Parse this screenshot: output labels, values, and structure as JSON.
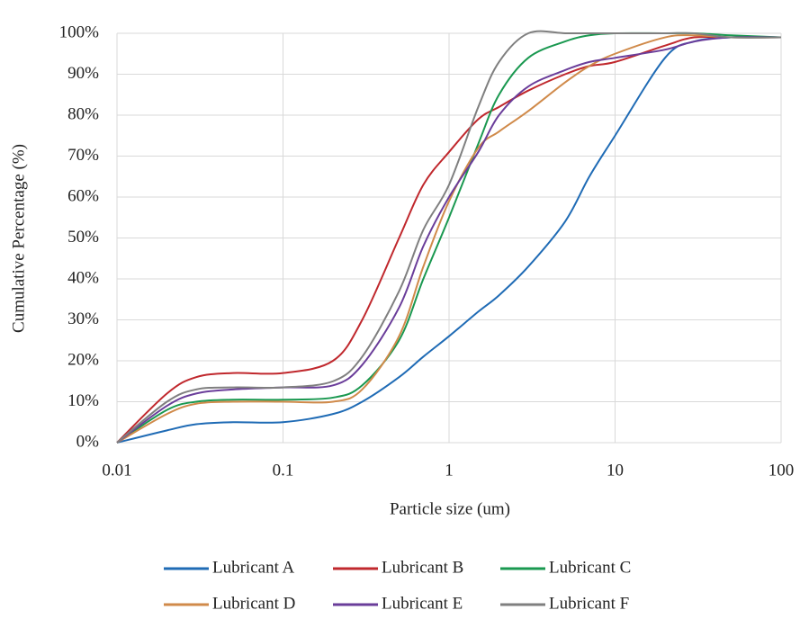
{
  "chart_data": {
    "type": "line",
    "x_label": "Particle size (um)",
    "y_label": "Cumulative Percentage (%)",
    "xscale": "log",
    "grid": true,
    "legend": "bottom",
    "x": [
      0.01,
      0.02,
      0.03,
      0.05,
      0.1,
      0.2,
      0.3,
      0.5,
      0.7,
      1,
      1.5,
      2,
      3,
      5,
      7,
      10,
      20,
      30,
      50,
      100
    ],
    "series": [
      {
        "name": "Lubricant A",
        "color": "#1f6bb5",
        "values": [
          0,
          3,
          4.5,
          5,
          5,
          7,
          10,
          16,
          21,
          26,
          32,
          36,
          43,
          54,
          65,
          75,
          94,
          98,
          99,
          99
        ]
      },
      {
        "name": "Lubricant B",
        "color": "#c0282d",
        "values": [
          0,
          12,
          16,
          17,
          17,
          20,
          30,
          50,
          63,
          71,
          79,
          82,
          86,
          90,
          92,
          93,
          97,
          99,
          99,
          99
        ]
      },
      {
        "name": "Lubricant C",
        "color": "#1a9850",
        "values": [
          0,
          8,
          10,
          10.5,
          10.5,
          11,
          14,
          25,
          40,
          55,
          73,
          85,
          94,
          98,
          99.5,
          100,
          100,
          100,
          99.5,
          99
        ]
      },
      {
        "name": "Lubricant D",
        "color": "#d08a4a",
        "values": [
          0,
          7,
          9.5,
          10,
          10,
          10,
          13,
          26,
          43,
          59,
          72,
          76,
          81,
          88,
          92,
          95,
          99,
          99.5,
          99,
          99
        ]
      },
      {
        "name": "Lubricant E",
        "color": "#6a3d9a",
        "values": [
          0,
          9,
          12,
          13,
          13.5,
          14,
          19,
          33,
          48,
          60,
          71,
          80,
          87,
          91,
          93,
          94,
          96,
          98,
          99,
          99
        ]
      },
      {
        "name": "Lubricant F",
        "color": "#7f7f7f",
        "values": [
          0,
          10,
          13,
          13.5,
          13.5,
          15,
          21,
          37,
          52,
          63,
          82,
          93,
          100,
          100,
          100,
          100,
          100,
          100,
          99,
          99
        ]
      }
    ],
    "xlim": [
      0.01,
      100
    ],
    "xticks": [
      0.01,
      0.1,
      1,
      10,
      100
    ],
    "ylim": [
      0,
      100
    ],
    "yticks": [
      {
        "value": 0,
        "label": "0%"
      },
      {
        "value": 10,
        "label": "10%"
      },
      {
        "value": 20,
        "label": "20%"
      },
      {
        "value": 30,
        "label": "30%"
      },
      {
        "value": 40,
        "label": "40%"
      },
      {
        "value": 50,
        "label": "50%"
      },
      {
        "value": 60,
        "label": "60%"
      },
      {
        "value": 70,
        "label": "70%"
      },
      {
        "value": 80,
        "label": "80%"
      },
      {
        "value": 90,
        "label": "90%"
      },
      {
        "value": 100,
        "label": "100%"
      }
    ]
  }
}
